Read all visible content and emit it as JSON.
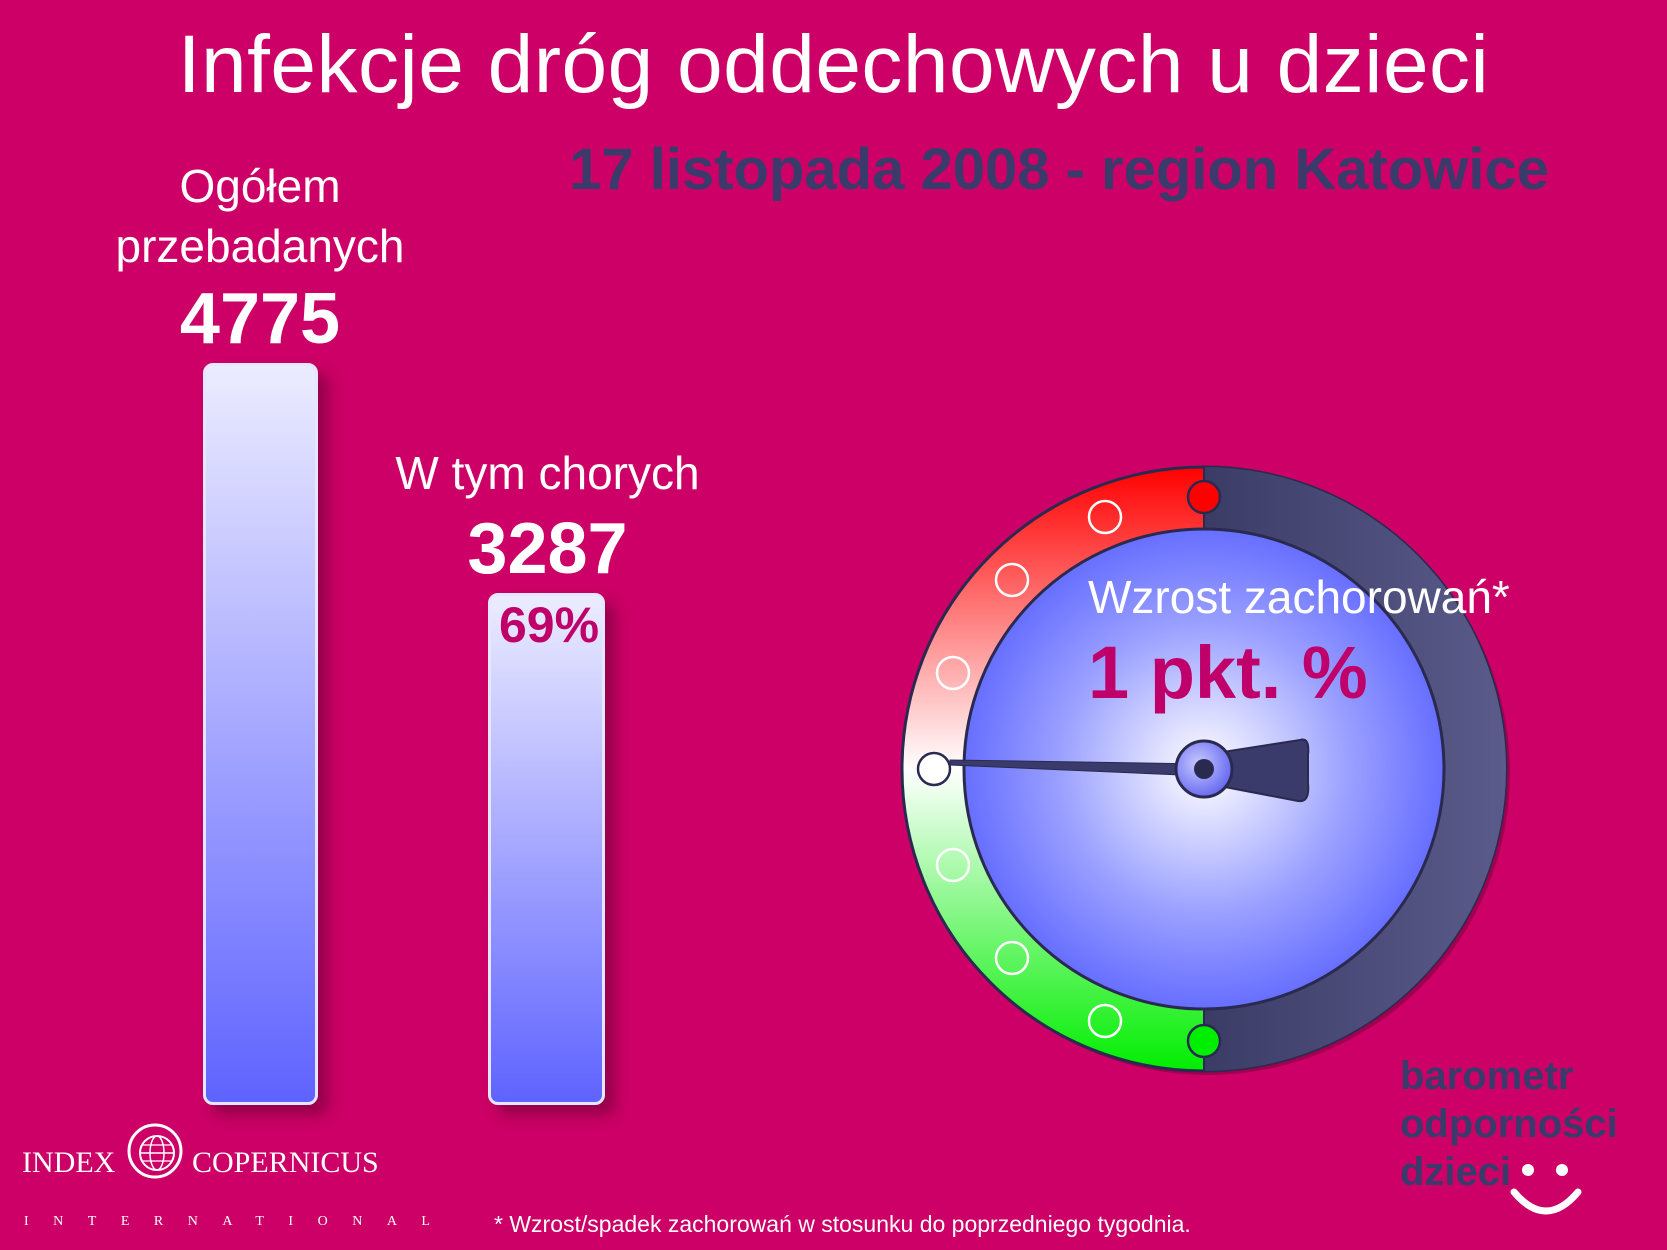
{
  "title": "Infekcje dróg oddechowych u dzieci",
  "subtitle": "17 listopada 2008 - region Katowice",
  "total": {
    "label_line1": "Ogółem",
    "label_line2": "przebadanych",
    "value": "4775"
  },
  "sick": {
    "label": "W tym chorych",
    "value": "3287",
    "percent": "69%"
  },
  "gauge": {
    "label": "Wzrost zachorowań*",
    "value_text": "1 pkt. %"
  },
  "footnote": "* Wzrost/spadek zachorowań w stosunku do poprzedniego tygodnia.",
  "logo": {
    "left_word": "INDEX",
    "right_word": "COPERNICUS",
    "bottom": "INTERNATIONAL"
  },
  "brand": {
    "line1": "barometr",
    "line2": "odporności",
    "line3": "dzieci"
  },
  "chart_data": {
    "type": "bar",
    "categories": [
      "Ogółem przebadanych",
      "W tym chorych"
    ],
    "values": [
      4775,
      3287
    ],
    "title": "Infekcje dróg oddechowych u dzieci",
    "subtitle": "17 listopada 2008 - region Katowice",
    "annotations": [
      "69%"
    ],
    "gauge_value": 1,
    "colors": {
      "background": "#cc0066",
      "bar_top": "#ececff",
      "bar_bottom": "#5f63ff",
      "accent_text": "#c0006a",
      "dark_text": "#3a3b6b"
    }
  }
}
